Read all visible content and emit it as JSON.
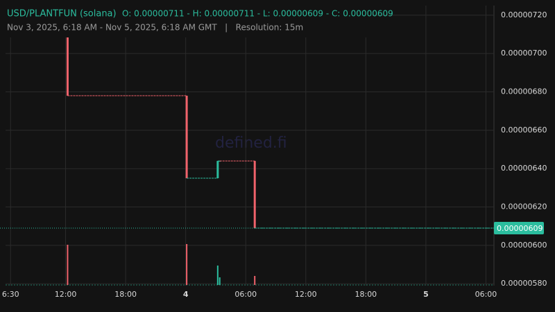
{
  "chart_data": {
    "type": "candlestick",
    "title": "USD/PLANTFUN (solana)",
    "ohlc": "O: 0.00000711 - H: 0.00000711 - L: 0.00000609 - C: 0.00000609",
    "subtitle": "Nov 3, 2025, 6:18 AM - Nov 5, 2025, 6:18 AM GMT   |   Resolution: 15m",
    "watermark": "defined.fi",
    "up_color": "#2bbd9e",
    "down_color": "#f0626b",
    "ylim": [
      5.79e-06,
      7.25e-06
    ],
    "yticks": [
      {
        "value": 5.8e-06,
        "label": "0.00000580"
      },
      {
        "value": 6e-06,
        "label": "0.00000600"
      },
      {
        "value": 6.2e-06,
        "label": "0.00000620"
      },
      {
        "value": 6.4e-06,
        "label": "0.00000640"
      },
      {
        "value": 6.6e-06,
        "label": "0.00000660"
      },
      {
        "value": 6.8e-06,
        "label": "0.00000680"
      },
      {
        "value": 7e-06,
        "label": "0.00000700"
      },
      {
        "value": 7.2e-06,
        "label": "0.00000720"
      }
    ],
    "xlim": [
      6.0,
      54.8
    ],
    "xticks": [
      {
        "value": 6.5,
        "label": "6:30"
      },
      {
        "value": 12,
        "label": "12:00"
      },
      {
        "value": 18,
        "label": "18:00"
      },
      {
        "value": 24,
        "label": "4"
      },
      {
        "value": 30,
        "label": "06:00"
      },
      {
        "value": 36,
        "label": "12:00"
      },
      {
        "value": 42,
        "label": "18:00"
      },
      {
        "value": 48,
        "label": "5"
      },
      {
        "value": 54,
        "label": "06:00"
      }
    ],
    "grid": true,
    "candles": [
      {
        "x": 12.2,
        "open": 7.11e-06,
        "high": 7.11e-06,
        "low": 6.78e-06,
        "close": 6.78e-06,
        "volume": 58
      },
      {
        "x": 24.1,
        "open": 6.78e-06,
        "high": 6.78e-06,
        "low": 6.35e-06,
        "close": 6.35e-06,
        "volume": 59
      },
      {
        "x": 27.2,
        "open": 6.35e-06,
        "high": 6.44e-06,
        "low": 6.35e-06,
        "close": 6.44e-06,
        "volume": 28
      },
      {
        "x": 27.4,
        "open": 6.44e-06,
        "high": 6.44e-06,
        "low": 6.44e-06,
        "close": 6.44e-06,
        "volume": 11
      },
      {
        "x": 30.9,
        "open": 6.44e-06,
        "high": 6.44e-06,
        "low": 6.09e-06,
        "close": 6.09e-06,
        "volume": 13
      }
    ],
    "current_price": 6.09e-06
  }
}
